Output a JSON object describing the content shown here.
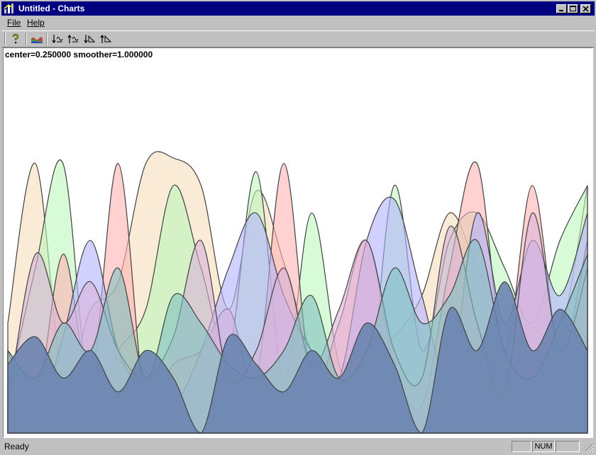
{
  "window": {
    "title": "Untitled - Charts",
    "controls": [
      "minimize-icon",
      "maximize-icon",
      "close-icon"
    ]
  },
  "menu": {
    "items": [
      {
        "label": "File",
        "mnemonic": "F"
      },
      {
        "label": "Help",
        "mnemonic": "H"
      }
    ]
  },
  "toolbar": {
    "tools": [
      {
        "name": "help-icon"
      },
      {
        "name": "chart-icon"
      },
      {
        "name": "shift-down-left-icon"
      },
      {
        "name": "shift-up-left-icon"
      },
      {
        "name": "shift-down-right-icon"
      },
      {
        "name": "shift-up-right-icon"
      }
    ]
  },
  "readout": "center=0.250000 smoother=1.000000",
  "status": {
    "text": "Ready",
    "panels": [
      "",
      "NUM",
      ""
    ]
  },
  "chart_data": {
    "type": "area",
    "series": [
      {
        "color": "#f7ddbd",
        "values": [
          0.4,
          0.98,
          0.2,
          0.45,
          0.55,
          0.98,
          1.0,
          0.9,
          0.45,
          0.88,
          0.62,
          0.3,
          0.2,
          0.25,
          0.35,
          0.5,
          0.8,
          0.6,
          0.4,
          0.3,
          0.35,
          0.9
        ]
      },
      {
        "color": "#bdf7bd",
        "values": [
          0.15,
          0.6,
          0.98,
          0.1,
          0.3,
          0.45,
          0.9,
          0.6,
          0.3,
          0.95,
          0.2,
          0.8,
          0.25,
          0.1,
          0.9,
          0.3,
          0.7,
          0.8,
          0.6,
          0.4,
          0.7,
          0.9
        ]
      },
      {
        "color": "#ffb3b3",
        "values": [
          0.3,
          0.1,
          0.65,
          0.2,
          0.98,
          0.1,
          0.25,
          0.3,
          0.45,
          0.2,
          0.98,
          0.2,
          0.4,
          0.7,
          0.25,
          0.1,
          0.6,
          0.98,
          0.3,
          0.9,
          0.3,
          0.7
        ]
      },
      {
        "color": "#b3b3ff",
        "values": [
          0.2,
          0.05,
          0.35,
          0.7,
          0.3,
          0.15,
          0.1,
          0.3,
          0.6,
          0.8,
          0.5,
          0.3,
          0.2,
          0.7,
          0.85,
          0.5,
          0.2,
          0.8,
          0.4,
          0.7,
          0.5,
          0.8
        ]
      },
      {
        "color": "#d9b3d9",
        "values": [
          0.1,
          0.65,
          0.4,
          0.55,
          0.3,
          0.2,
          0.35,
          0.7,
          0.2,
          0.3,
          0.6,
          0.25,
          0.45,
          0.7,
          0.3,
          0.2,
          0.75,
          0.4,
          0.15,
          0.8,
          0.3,
          0.6
        ]
      },
      {
        "color": "#7fbfbf",
        "values": [
          0.3,
          0.2,
          0.4,
          0.3,
          0.6,
          0.2,
          0.5,
          0.4,
          0.25,
          0.2,
          0.3,
          0.5,
          0.2,
          0.3,
          0.6,
          0.4,
          0.5,
          0.7,
          0.3,
          0.2,
          0.4,
          0.65
        ]
      },
      {
        "color": "#6a84b0",
        "values": [
          0.25,
          0.35,
          0.2,
          0.3,
          0.15,
          0.3,
          0.2,
          0.0,
          0.35,
          0.25,
          0.15,
          0.3,
          0.2,
          0.4,
          0.25,
          0.0,
          0.45,
          0.3,
          0.55,
          0.3,
          0.45,
          0.3
        ]
      }
    ],
    "ylim": [
      0,
      1
    ],
    "grid": false,
    "legend": "none"
  }
}
